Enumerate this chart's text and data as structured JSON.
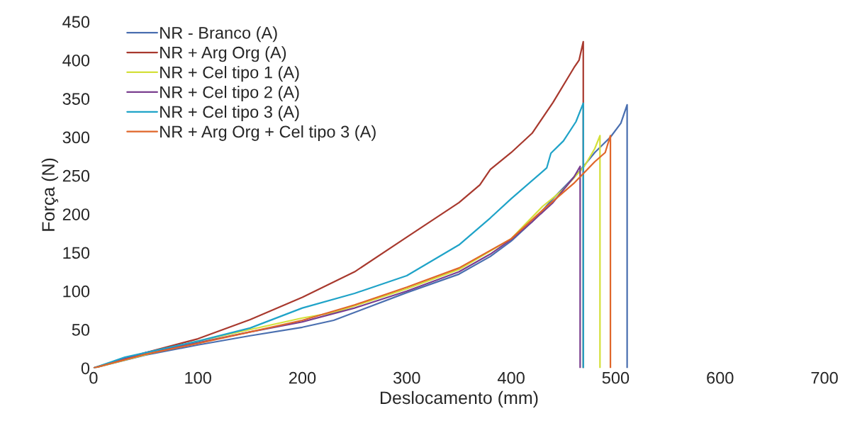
{
  "chart_data": {
    "type": "line",
    "xlabel": "Deslocamento (mm)",
    "ylabel": "Força (N)",
    "xlim": [
      0,
      700
    ],
    "ylim": [
      0,
      450
    ],
    "xticks": [
      0,
      100,
      200,
      300,
      400,
      500,
      600,
      700
    ],
    "yticks": [
      0,
      50,
      100,
      150,
      200,
      250,
      300,
      350,
      400,
      450
    ],
    "grid": false,
    "legend": "top left",
    "marker": "none",
    "line_style": "solid",
    "series": [
      {
        "name": "NR - Branco (A)",
        "color": "#4a6fb0",
        "x": [
          0,
          50,
          100,
          150,
          200,
          230,
          300,
          350,
          380,
          400,
          420,
          440,
          465,
          480,
          495,
          505,
          511,
          511
        ],
        "values": [
          0,
          17,
          30,
          42,
          53,
          62,
          98,
          122,
          145,
          165,
          190,
          220,
          255,
          280,
          300,
          318,
          342,
          0
        ]
      },
      {
        "name": "NR + Arg Org (A)",
        "color": "#a8392e",
        "x": [
          0,
          50,
          100,
          150,
          200,
          250,
          300,
          350,
          370,
          380,
          400,
          420,
          440,
          460,
          465,
          469,
          469
        ],
        "values": [
          0,
          20,
          38,
          63,
          92,
          125,
          170,
          215,
          238,
          258,
          280,
          305,
          345,
          390,
          400,
          424,
          0
        ]
      },
      {
        "name": "NR + Cel tipo 1 (A)",
        "color": "#d4e03a",
        "x": [
          0,
          100,
          150,
          200,
          230,
          300,
          350,
          400,
          430,
          450,
          470,
          480,
          485,
          485
        ],
        "values": [
          0,
          35,
          50,
          65,
          72,
          103,
          128,
          168,
          210,
          232,
          262,
          285,
          302,
          0
        ]
      },
      {
        "name": "NR + Cel tipo 2 (A)",
        "color": "#7a3f8f",
        "x": [
          0,
          50,
          100,
          150,
          200,
          250,
          300,
          350,
          380,
          400,
          420,
          440,
          460,
          466,
          466
        ],
        "values": [
          0,
          20,
          33,
          47,
          60,
          78,
          100,
          125,
          148,
          167,
          190,
          215,
          248,
          262,
          0
        ]
      },
      {
        "name": "NR + Cel tipo 3 (A)",
        "color": "#1fa3c8",
        "x": [
          0,
          30,
          100,
          150,
          200,
          250,
          300,
          350,
          380,
          400,
          434,
          438,
          450,
          462,
          469,
          469
        ],
        "values": [
          0,
          14,
          35,
          52,
          78,
          97,
          120,
          160,
          195,
          220,
          260,
          279,
          295,
          320,
          344,
          0
        ]
      },
      {
        "name": "NR + Arg Org + Cel tipo 3 (A)",
        "color": "#e0662a",
        "x": [
          0,
          50,
          100,
          150,
          200,
          250,
          300,
          350,
          400,
          430,
          460,
          480,
          490,
          495,
          495
        ],
        "values": [
          0,
          18,
          32,
          47,
          62,
          82,
          105,
          130,
          168,
          205,
          240,
          268,
          280,
          302,
          0
        ]
      }
    ]
  }
}
